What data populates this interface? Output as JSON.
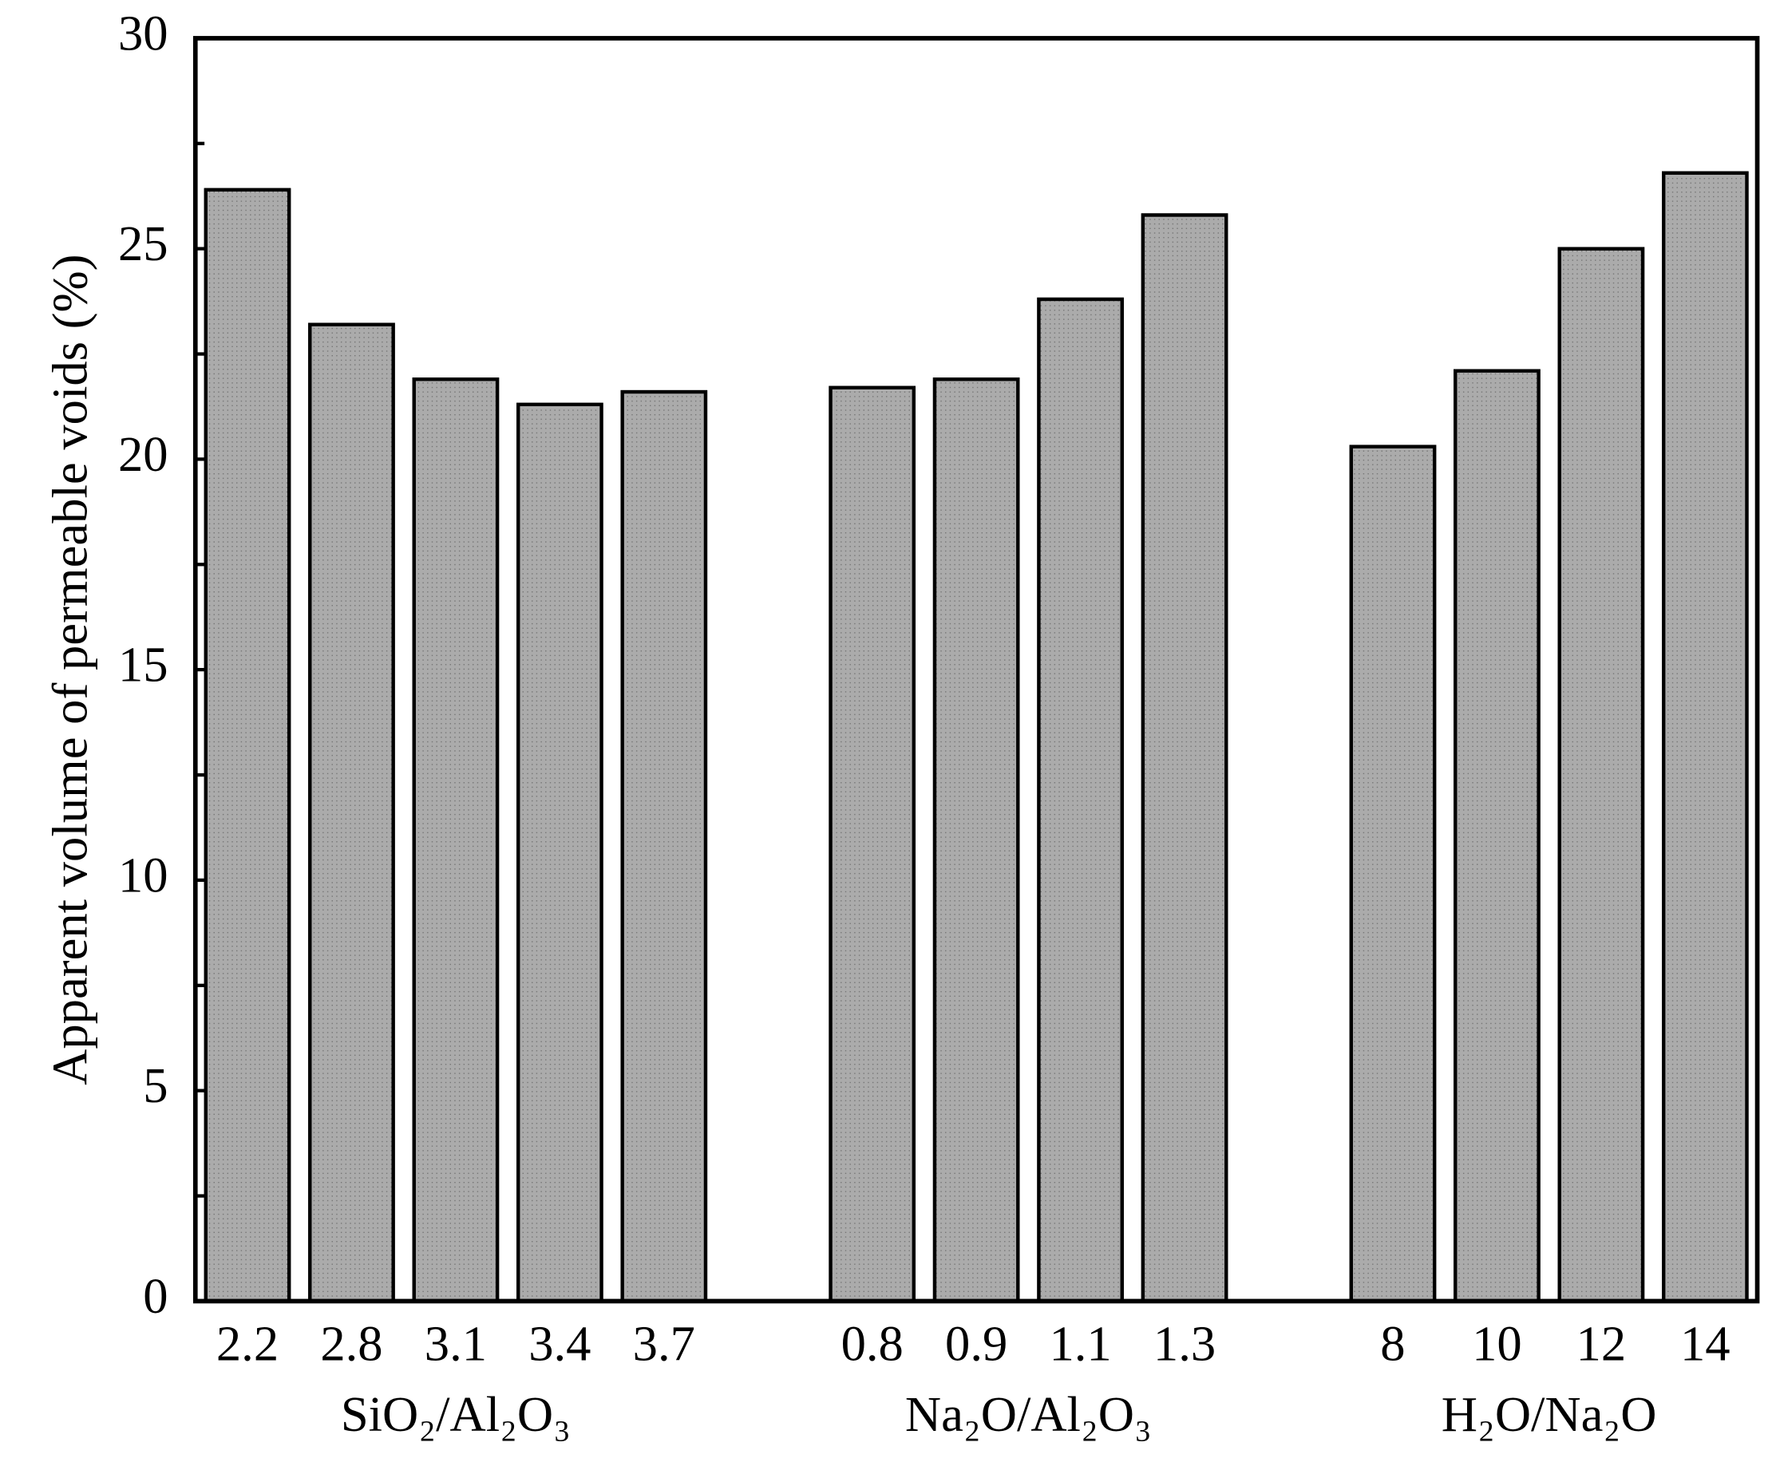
{
  "chart_data": {
    "type": "bar",
    "ylabel": "Apparent volume of permeable voids (%)",
    "categories": [
      "2.2",
      "2.8",
      "3.1",
      "3.4",
      "3.7",
      null,
      "0.8",
      "0.9",
      "1.1",
      "1.3",
      null,
      "8",
      "10",
      "12",
      "14"
    ],
    "values": [
      26.4,
      23.2,
      21.9,
      21.3,
      21.6,
      null,
      21.7,
      21.9,
      23.8,
      25.8,
      null,
      20.3,
      22.1,
      25.0,
      26.8
    ],
    "group_labels": [
      "SiO₂/Al₂O₃",
      "Na₂O/Al₂O₃",
      "H₂O/Na₂O"
    ],
    "color": "#ababab",
    "ylim": [
      0,
      30
    ],
    "yticks": [
      0,
      5,
      10,
      15,
      20,
      25,
      30
    ],
    "grid": false
  }
}
